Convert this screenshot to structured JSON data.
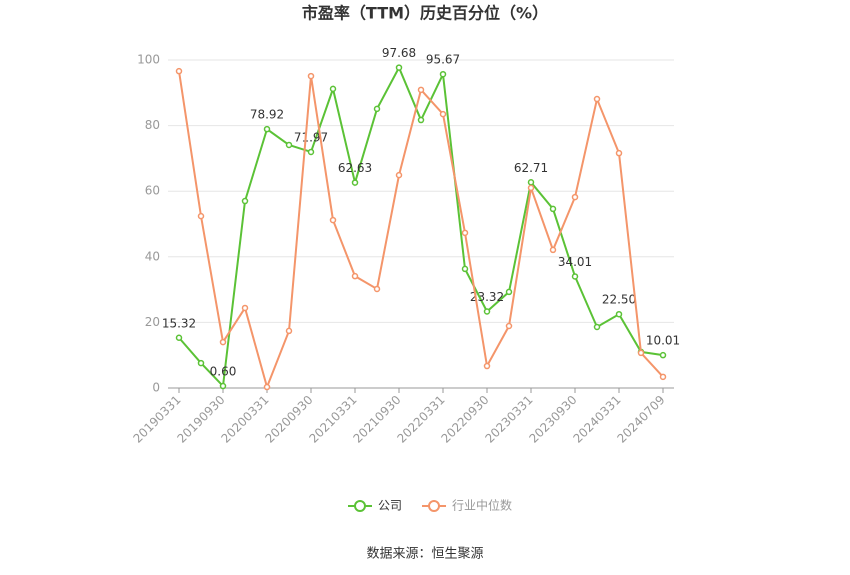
{
  "chart_data": {
    "type": "line",
    "title": "市盈率（TTM）历史百分位（%）",
    "source": "数据来源：恒生聚源",
    "categories": [
      "20190331",
      null,
      "20190930",
      null,
      "20200331",
      null,
      "20200930",
      null,
      "20210331",
      null,
      "20210930",
      null,
      "20220331",
      null,
      "20220930",
      null,
      "20230331",
      null,
      "20230930",
      null,
      "20240331",
      null,
      "20240709"
    ],
    "series": [
      {
        "name": "公司",
        "color": "#5bc236",
        "values": [
          15.32,
          7.6,
          0.6,
          57,
          78.92,
          74.1,
          71.97,
          91.2,
          62.63,
          85.1,
          97.68,
          81.7,
          95.67,
          36.3,
          23.32,
          29.3,
          62.71,
          54.6,
          34.01,
          18.6,
          22.5,
          11,
          10.01
        ],
        "value_labels": [
          "15.32",
          null,
          "0.60",
          null,
          "78.92",
          null,
          "71.97",
          null,
          "62.63",
          null,
          "97.68",
          null,
          "95.67",
          null,
          "23.32",
          null,
          "62.71",
          null,
          "34.01",
          null,
          "22.50",
          null,
          "10.01"
        ]
      },
      {
        "name": "行业中位数",
        "color": "#f4956a",
        "values": [
          96.6,
          52.4,
          14,
          24.4,
          0.3,
          17.4,
          95.1,
          51.2,
          34.1,
          30.2,
          64.9,
          90.9,
          83.5,
          47.3,
          6.7,
          18.9,
          61,
          42.1,
          58.2,
          88.1,
          71.6,
          10.7,
          3.4
        ]
      }
    ],
    "ylim": [
      0,
      100
    ],
    "yticks": [
      0,
      20,
      40,
      60,
      80,
      100
    ],
    "grid": true
  }
}
